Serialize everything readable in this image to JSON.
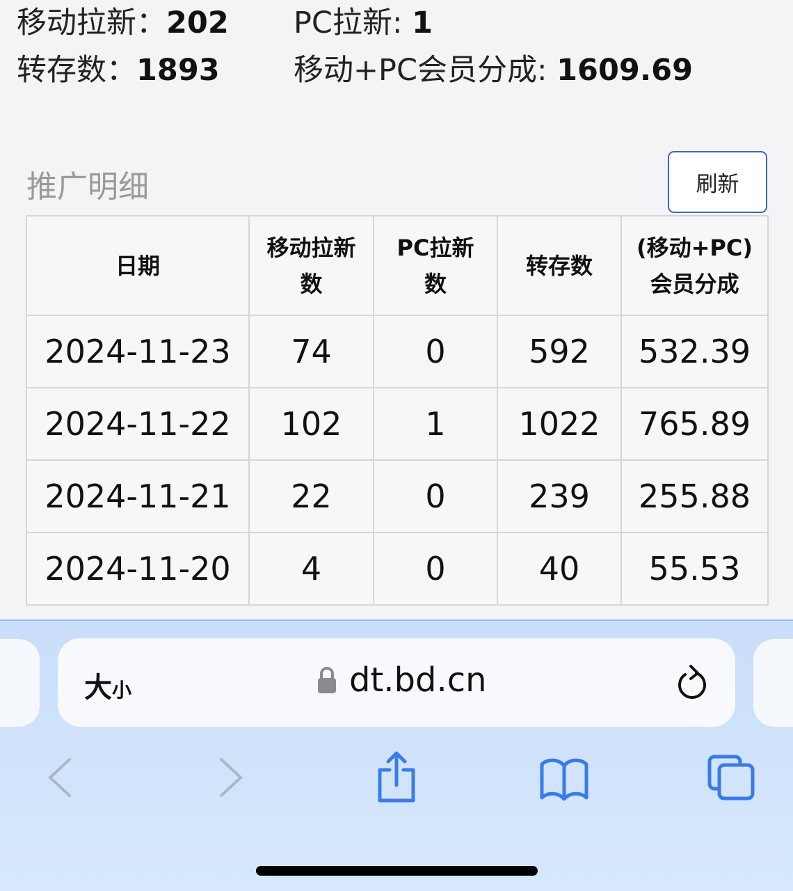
{
  "summary": {
    "mobile_new_label": "移动拉新：",
    "mobile_new": "202",
    "pc_new_label": "PC拉新: ",
    "pc_new": "1",
    "saves_label": "转存数：",
    "saves": "1893",
    "share_label": "移动+PC会员分成: ",
    "share": "1609.69"
  },
  "section": {
    "title": "推广明细",
    "refresh_label": "刷新"
  },
  "table": {
    "headers": [
      "日期",
      "移动拉新数",
      "PC拉新数",
      "转存数",
      "(移动+PC)会员分成"
    ],
    "rows": [
      [
        "2024-11-23",
        "74",
        "0",
        "592",
        "532.39"
      ],
      [
        "2024-11-22",
        "102",
        "1",
        "1022",
        "765.89"
      ],
      [
        "2024-11-21",
        "22",
        "0",
        "239",
        "255.88"
      ],
      [
        "2024-11-20",
        "4",
        "0",
        "40",
        "55.53"
      ]
    ]
  },
  "browser": {
    "text_size_big": "大",
    "text_size_small": "小",
    "url": "dt.bd.cn",
    "accent": "#3a7bea"
  }
}
